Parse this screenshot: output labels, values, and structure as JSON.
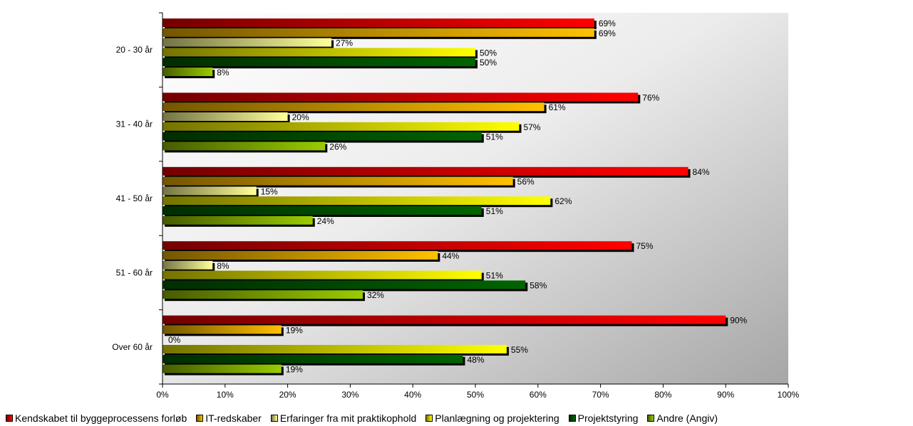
{
  "chart_data": {
    "type": "bar",
    "orientation": "horizontal",
    "categories": [
      "20 - 30 år",
      "31 - 40 år",
      "41 - 50 år",
      "51 - 60 år",
      "Over 60 år"
    ],
    "series": [
      {
        "name": "Kendskabet til byggeprocessens forløb",
        "values": [
          69,
          76,
          84,
          75,
          90
        ],
        "color": "#ff0000"
      },
      {
        "name": "IT-redskaber",
        "values": [
          69,
          61,
          56,
          44,
          19
        ],
        "color": "#ffc000"
      },
      {
        "name": "Erfaringer fra mit praktikophold",
        "values": [
          27,
          20,
          15,
          8,
          0
        ],
        "color": "#ffff99"
      },
      {
        "name": "Planlægning og projektering",
        "values": [
          50,
          57,
          62,
          51,
          55
        ],
        "color": "#ffff00"
      },
      {
        "name": "Projektstyring",
        "values": [
          50,
          51,
          51,
          58,
          48
        ],
        "color": "#006400"
      },
      {
        "name": "Andre (Angiv)",
        "values": [
          8,
          26,
          24,
          32,
          19
        ],
        "color": "#99cc00"
      }
    ],
    "x_ticks": [
      "0%",
      "10%",
      "20%",
      "30%",
      "40%",
      "50%",
      "60%",
      "70%",
      "80%",
      "90%",
      "100%"
    ],
    "xlim": [
      0,
      100
    ],
    "value_suffix": "%",
    "legend_position": "bottom",
    "plot_background": "gradient white to gray",
    "grid": false
  }
}
